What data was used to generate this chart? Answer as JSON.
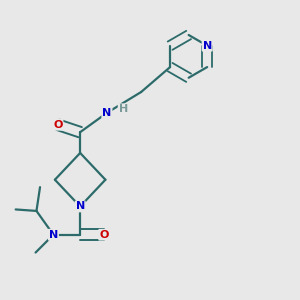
{
  "bg_color": "#e8e8e8",
  "bond_color": "#2d6b6b",
  "atom_colors": {
    "N": "#0000cc",
    "O": "#cc0000",
    "H": "#7a9a9a",
    "C": "#2d6b6b"
  }
}
